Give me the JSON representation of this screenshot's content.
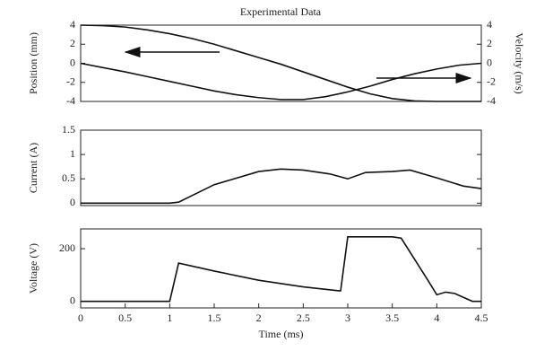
{
  "chart_data": [
    {
      "type": "line",
      "title": "Experimental Data",
      "ylabel": "Position (mm)",
      "y2label": "Velocity (m/s)",
      "x": [
        0,
        0.25,
        0.5,
        0.75,
        1,
        1.25,
        1.5,
        1.75,
        2,
        2.25,
        2.5,
        2.75,
        3,
        3.25,
        3.5,
        3.75,
        4,
        4.25,
        4.5
      ],
      "series": [
        {
          "name": "Position",
          "color": "#111111",
          "values": [
            4,
            3.95,
            3.8,
            3.5,
            3.1,
            2.6,
            2.0,
            1.3,
            0.6,
            -0.1,
            -0.9,
            -1.7,
            -2.5,
            -3.2,
            -3.7,
            -3.95,
            -4,
            -4,
            -4
          ]
        },
        {
          "name": "Velocity",
          "color": "#111111",
          "axis": "y2",
          "values": [
            0,
            -0.45,
            -0.9,
            -1.4,
            -1.9,
            -2.4,
            -2.9,
            -3.3,
            -3.6,
            -3.8,
            -3.8,
            -3.5,
            -3.0,
            -2.4,
            -1.7,
            -1.1,
            -0.6,
            -0.2,
            0
          ]
        }
      ],
      "xlim": [
        0,
        4.5
      ],
      "ylim": [
        -4,
        4
      ],
      "yticks": [
        -4,
        -2,
        0,
        2,
        4
      ],
      "y2lim": [
        -4,
        4
      ],
      "y2ticks": [
        -4,
        -2,
        0,
        2,
        4
      ]
    },
    {
      "type": "line",
      "ylabel": "Current (A)",
      "x": [
        0,
        0.5,
        1,
        1.1,
        1.5,
        2,
        2.25,
        2.5,
        2.8,
        3,
        3.2,
        3.5,
        3.7,
        4,
        4.3,
        4.5
      ],
      "series": [
        {
          "name": "Current",
          "color": "#111111",
          "values": [
            0,
            0,
            0,
            0.02,
            0.38,
            0.65,
            0.7,
            0.68,
            0.6,
            0.5,
            0.63,
            0.65,
            0.68,
            0.52,
            0.35,
            0.3
          ]
        }
      ],
      "xlim": [
        0,
        4.5
      ],
      "ylim": [
        -0.05,
        1.5
      ],
      "yticks": [
        0,
        0.5,
        1,
        1.5
      ]
    },
    {
      "type": "line",
      "ylabel": "Voltage (V)",
      "xlabel": "Time (ms)",
      "x": [
        0,
        1,
        1.1,
        1.5,
        2,
        2.5,
        2.9,
        2.92,
        3,
        3.5,
        3.6,
        3.9,
        4,
        4.1,
        4.2,
        4.4,
        4.5
      ],
      "series": [
        {
          "name": "Voltage",
          "color": "#111111",
          "values": [
            0,
            0,
            145,
            115,
            80,
            55,
            40,
            40,
            245,
            245,
            240,
            80,
            25,
            35,
            30,
            0,
            0
          ]
        }
      ],
      "xlim": [
        0,
        4.5
      ],
      "xticks": [
        0,
        0.5,
        1,
        1.5,
        2,
        2.5,
        3,
        3.5,
        4,
        4.5
      ],
      "ylim": [
        -25,
        275
      ],
      "yticks": [
        0,
        200
      ]
    }
  ]
}
